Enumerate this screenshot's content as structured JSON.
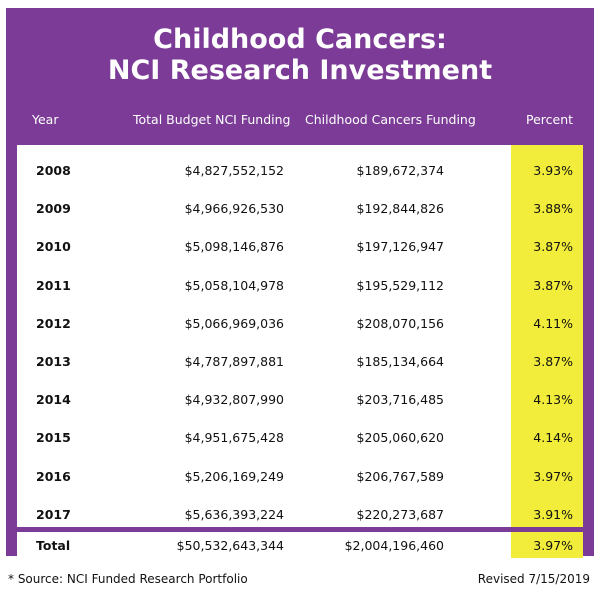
{
  "chart_data": {
    "type": "table",
    "title_line1": "Childhood Cancers:",
    "title_line2": "NCI Research Investment",
    "columns": [
      "Year",
      "Total Budget NCI Funding",
      "Childhood Cancers Funding",
      "Percent"
    ],
    "rows": [
      {
        "year": "2008",
        "total": "$4,827,552,152",
        "childhood": "$189,672,374",
        "percent": "3.93%"
      },
      {
        "year": "2009",
        "total": "$4,966,926,530",
        "childhood": "$192,844,826",
        "percent": "3.88%"
      },
      {
        "year": "2010",
        "total": "$5,098,146,876",
        "childhood": "$197,126,947",
        "percent": "3.87%"
      },
      {
        "year": "2011",
        "total": "$5,058,104,978",
        "childhood": "$195,529,112",
        "percent": "3.87%"
      },
      {
        "year": "2012",
        "total": "$5,066,969,036",
        "childhood": "$208,070,156",
        "percent": "4.11%"
      },
      {
        "year": "2013",
        "total": "$4,787,897,881",
        "childhood": "$185,134,664",
        "percent": "3.87%"
      },
      {
        "year": "2014",
        "total": "$4,932,807,990",
        "childhood": "$203,716,485",
        "percent": "4.13%"
      },
      {
        "year": "2015",
        "total": "$4,951,675,428",
        "childhood": "$205,060,620",
        "percent": "4.14%"
      },
      {
        "year": "2016",
        "total": "$5,206,169,249",
        "childhood": "$206,767,589",
        "percent": "3.97%"
      },
      {
        "year": "2017",
        "total": "$5,636,393,224",
        "childhood": "$220,273,687",
        "percent": "3.91%"
      }
    ],
    "total_row": {
      "label": "Total",
      "total": "$50,532,643,344",
      "childhood": "$2,004,196,460",
      "percent": "3.97%"
    }
  },
  "footer": {
    "source": "* Source: NCI Funded Research Portfolio",
    "revised": "Revised 7/15/2019"
  },
  "colors": {
    "frame": "#7b3b96",
    "highlight": "#f2ec3a"
  }
}
